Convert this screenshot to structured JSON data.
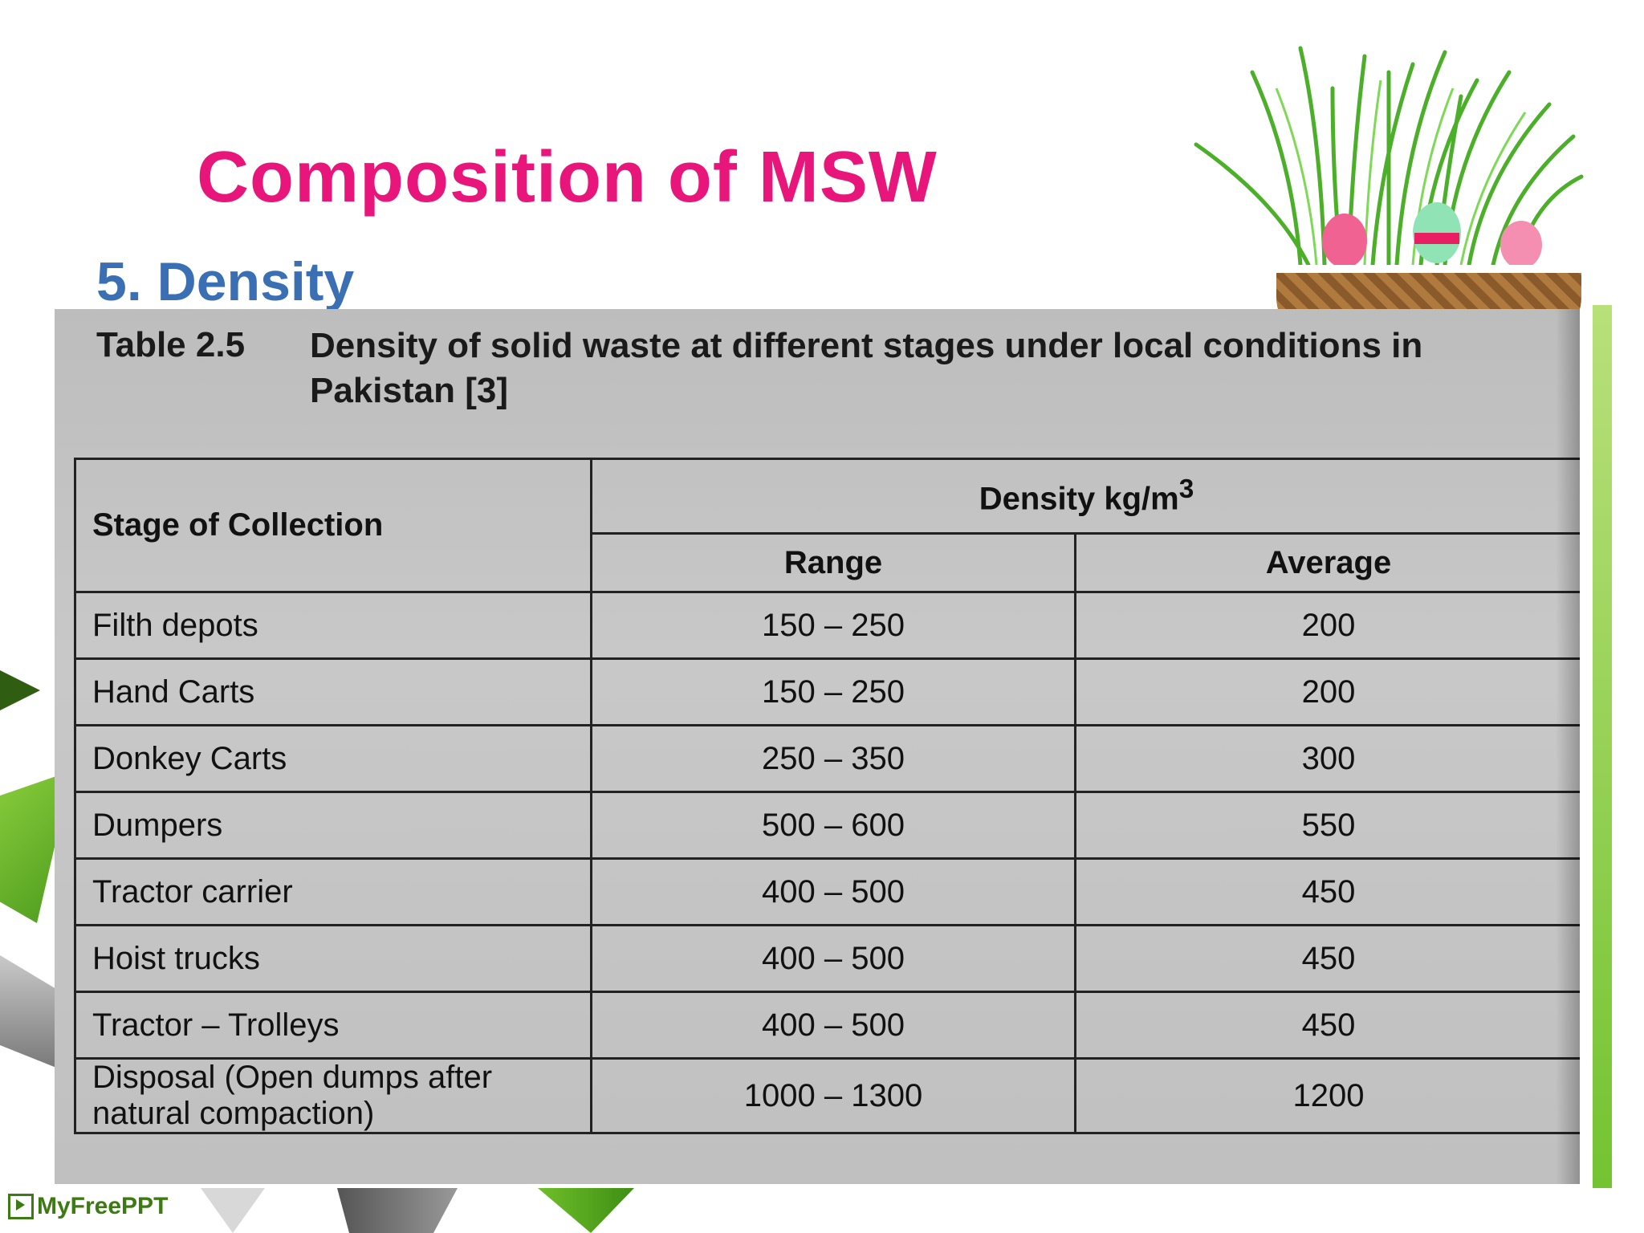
{
  "slide": {
    "title": "Composition of MSW",
    "subtitle": "5. Density"
  },
  "table": {
    "number": "Table 2.5",
    "caption": "Density of solid waste at different stages under local conditions in Pakistan [3]",
    "headers": {
      "stage": "Stage of Collection",
      "density": "Density kg/m",
      "density_exp": "3",
      "range": "Range",
      "average": "Average"
    },
    "rows": [
      {
        "stage": "Filth depots",
        "range": "150 – 250",
        "average": "200"
      },
      {
        "stage": "Hand Carts",
        "range": "150 – 250",
        "average": "200"
      },
      {
        "stage": "Donkey Carts",
        "range": "250 – 350",
        "average": "300"
      },
      {
        "stage": "Dumpers",
        "range": "500 – 600",
        "average": "550"
      },
      {
        "stage": "Tractor carrier",
        "range": "400 – 500",
        "average": "450"
      },
      {
        "stage": "Hoist trucks",
        "range": "400 – 500",
        "average": "450"
      },
      {
        "stage": "Tractor – Trolleys",
        "range": "400 – 500",
        "average": "450"
      },
      {
        "stage": "Disposal (Open dumps after natural compaction)",
        "range": "1000 – 1300",
        "average": "1200"
      }
    ]
  },
  "footer": {
    "logo": "MyFreePPT"
  },
  "colors": {
    "title": "#e8157a",
    "subtitle": "#3a6fb4",
    "accent_green": "#74c331"
  }
}
